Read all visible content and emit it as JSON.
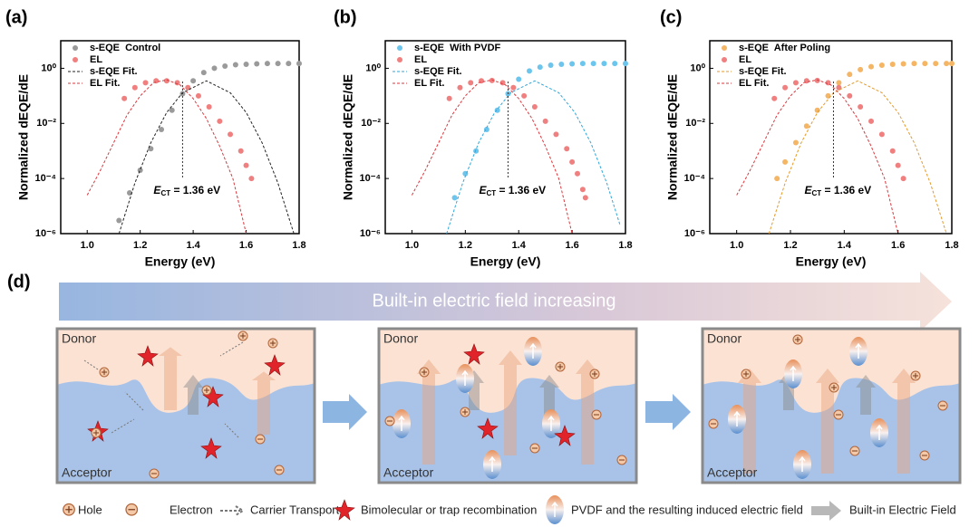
{
  "chart_data": [
    {
      "type": "scatter",
      "panel": "(a)",
      "xlabel": "Energy (eV)",
      "ylabel": "Normalized dEQE/dE",
      "xlim": [
        0.9,
        1.8
      ],
      "xticks": [
        {
          "value": 1,
          "label": "1.0"
        },
        1.2,
        1.4,
        1.6,
        1.8
      ],
      "ylim": [
        1e-06,
        10
      ],
      "ylog": true,
      "yticks": [
        {
          "value": 1,
          "label": "10⁰"
        },
        {
          "value": 0.01,
          "label": "10⁻²"
        },
        {
          "value": 0.0001,
          "label": "10⁻⁴"
        },
        {
          "value": 1e-06,
          "label": "10⁻⁶"
        }
      ],
      "legend": "upper left",
      "series": [
        {
          "name": "s-EQE  Control",
          "color": "#9a9a9a",
          "style": "markers",
          "x": [
            1.12,
            1.16,
            1.2,
            1.24,
            1.28,
            1.32,
            1.36,
            1.4,
            1.44,
            1.48,
            1.52,
            1.56,
            1.6,
            1.64,
            1.68,
            1.72,
            1.76,
            1.8
          ],
          "values": [
            3e-06,
            3e-05,
            0.0002,
            0.0012,
            0.006,
            0.03,
            0.12,
            0.35,
            0.7,
            1.0,
            1.2,
            1.35,
            1.4,
            1.45,
            1.5,
            1.5,
            1.5,
            1.5
          ]
        },
        {
          "name": "EL",
          "color": "#f07f7f",
          "style": "markers",
          "x": [
            1.14,
            1.18,
            1.22,
            1.26,
            1.3,
            1.34,
            1.38,
            1.42,
            1.46,
            1.5,
            1.54,
            1.58,
            1.6,
            1.62
          ],
          "values": [
            0.08,
            0.2,
            0.3,
            0.35,
            0.35,
            0.3,
            0.2,
            0.1,
            0.04,
            0.012,
            0.004,
            0.001,
            0.0003,
            0.0001
          ]
        },
        {
          "name": "s-EQE Fit.",
          "color": "#222222",
          "style": "dashed",
          "x": [
            1.12,
            1.18,
            1.24,
            1.3,
            1.36,
            1.45,
            1.54,
            1.6,
            1.66,
            1.72,
            1.78
          ],
          "values": [
            1e-06,
            6.8e-05,
            0.002,
            0.025,
            0.13,
            0.35,
            0.13,
            0.025,
            0.002,
            6.8e-05,
            1e-06
          ]
        },
        {
          "name": "EL Fit.",
          "color": "#d9393f",
          "style": "dashed",
          "x": [
            1.0,
            1.05,
            1.1,
            1.15,
            1.2,
            1.25,
            1.3,
            1.35,
            1.4,
            1.45,
            1.5,
            1.55,
            1.6
          ],
          "values": [
            2.5e-05,
            0.0002,
            0.002,
            0.02,
            0.1,
            0.3,
            0.38,
            0.25,
            0.08,
            0.015,
            0.0015,
            0.0001,
            1e-06
          ]
        }
      ],
      "annotation": {
        "symbol": "E",
        "sub": "CT",
        "text": " = 1.36 eV",
        "x": 1.36
      }
    },
    {
      "type": "scatter",
      "panel": "(b)",
      "xlabel": "Energy (eV)",
      "ylabel": "Normalized dEQE/dE",
      "xlim": [
        0.9,
        1.8
      ],
      "xticks": [
        {
          "value": 1,
          "label": "1.0"
        },
        1.2,
        1.4,
        1.6,
        1.8
      ],
      "ylim": [
        1e-06,
        10
      ],
      "ylog": true,
      "yticks": [
        {
          "value": 1,
          "label": "10⁰"
        },
        {
          "value": 0.01,
          "label": "10⁻²"
        },
        {
          "value": 0.0001,
          "label": "10⁻⁴"
        },
        {
          "value": 1e-06,
          "label": "10⁻⁶"
        }
      ],
      "legend": "upper left",
      "series": [
        {
          "name": "s-EQE  With PVDF",
          "color": "#6cc5ec",
          "style": "markers",
          "x": [
            1.16,
            1.2,
            1.24,
            1.28,
            1.32,
            1.36,
            1.4,
            1.44,
            1.48,
            1.52,
            1.56,
            1.6,
            1.64,
            1.68,
            1.72,
            1.76,
            1.8
          ],
          "values": [
            2e-05,
            0.00015,
            0.001,
            0.006,
            0.03,
            0.12,
            0.4,
            0.8,
            1.1,
            1.3,
            1.4,
            1.45,
            1.5,
            1.5,
            1.5,
            1.5,
            1.5
          ]
        },
        {
          "name": "EL",
          "color": "#f07f7f",
          "style": "markers",
          "x": [
            1.14,
            1.18,
            1.22,
            1.26,
            1.3,
            1.34,
            1.38,
            1.42,
            1.46,
            1.5,
            1.54,
            1.58,
            1.6,
            1.62,
            1.64,
            1.65
          ],
          "values": [
            0.08,
            0.2,
            0.3,
            0.35,
            0.36,
            0.3,
            0.2,
            0.1,
            0.04,
            0.012,
            0.004,
            0.0012,
            0.0004,
            0.00015,
            4e-05,
            2e-05
          ]
        },
        {
          "name": "s-EQE Fit.",
          "color": "#35a6d8",
          "style": "dashed",
          "x": [
            1.13,
            1.19,
            1.25,
            1.31,
            1.37,
            1.46,
            1.55,
            1.61,
            1.67,
            1.73,
            1.78
          ],
          "values": [
            1e-06,
            6.8e-05,
            0.002,
            0.025,
            0.13,
            0.35,
            0.13,
            0.025,
            0.002,
            6.8e-05,
            2e-06
          ]
        },
        {
          "name": "EL Fit.",
          "color": "#d9393f",
          "style": "dashed",
          "x": [
            1.0,
            1.05,
            1.1,
            1.15,
            1.2,
            1.25,
            1.3,
            1.35,
            1.4,
            1.45,
            1.5,
            1.55,
            1.6
          ],
          "values": [
            2.5e-05,
            0.0002,
            0.002,
            0.02,
            0.1,
            0.3,
            0.38,
            0.25,
            0.08,
            0.015,
            0.0015,
            0.0001,
            1e-06
          ]
        }
      ],
      "annotation": {
        "symbol": "E",
        "sub": "CT",
        "text": " = 1.36 eV",
        "x": 1.36
      }
    },
    {
      "type": "scatter",
      "panel": "(c)",
      "xlabel": "Energy (eV)",
      "ylabel": "Normalized dEQE/dE",
      "xlim": [
        0.9,
        1.8
      ],
      "xticks": [
        {
          "value": 1,
          "label": "1.0"
        },
        1.2,
        1.4,
        1.6,
        1.8
      ],
      "ylim": [
        1e-06,
        10
      ],
      "ylog": true,
      "yticks": [
        {
          "value": 1,
          "label": "10⁰"
        },
        {
          "value": 0.01,
          "label": "10⁻²"
        },
        {
          "value": 0.0001,
          "label": "10⁻⁴"
        },
        {
          "value": 1e-06,
          "label": "10⁻⁶"
        }
      ],
      "legend": "upper left",
      "series": [
        {
          "name": "s-EQE  After Poling",
          "color": "#f4b565",
          "style": "markers",
          "x": [
            1.15,
            1.18,
            1.22,
            1.26,
            1.3,
            1.34,
            1.38,
            1.42,
            1.46,
            1.5,
            1.54,
            1.58,
            1.62,
            1.66,
            1.7,
            1.74,
            1.78,
            1.8
          ],
          "values": [
            0.0001,
            0.0004,
            0.002,
            0.008,
            0.03,
            0.1,
            0.3,
            0.6,
            0.9,
            1.15,
            1.3,
            1.4,
            1.45,
            1.5,
            1.5,
            1.5,
            1.5,
            1.5
          ]
        },
        {
          "name": "EL",
          "color": "#f07f7f",
          "style": "markers",
          "x": [
            1.14,
            1.18,
            1.22,
            1.26,
            1.3,
            1.34,
            1.38,
            1.42,
            1.46,
            1.5,
            1.54,
            1.58,
            1.6,
            1.62
          ],
          "values": [
            0.08,
            0.2,
            0.3,
            0.35,
            0.36,
            0.3,
            0.2,
            0.1,
            0.04,
            0.012,
            0.004,
            0.001,
            0.0003,
            0.0001
          ]
        },
        {
          "name": "s-EQE Fit.",
          "color": "#e39a2e",
          "style": "dashed",
          "x": [
            1.12,
            1.18,
            1.24,
            1.3,
            1.36,
            1.45,
            1.54,
            1.6,
            1.66,
            1.72,
            1.78
          ],
          "values": [
            1e-06,
            6.8e-05,
            0.002,
            0.025,
            0.13,
            0.35,
            0.13,
            0.025,
            0.002,
            6.8e-05,
            1e-06
          ]
        },
        {
          "name": "EL Fit.",
          "color": "#d9393f",
          "style": "dashed",
          "x": [
            1.0,
            1.05,
            1.1,
            1.15,
            1.2,
            1.25,
            1.3,
            1.35,
            1.4,
            1.45,
            1.5,
            1.55,
            1.6
          ],
          "values": [
            2.5e-05,
            0.0002,
            0.002,
            0.02,
            0.1,
            0.3,
            0.38,
            0.25,
            0.08,
            0.015,
            0.0015,
            0.0001,
            1e-06
          ]
        }
      ],
      "annotation": {
        "symbol": "E",
        "sub": "CT",
        "text": " = 1.36 eV",
        "x": 1.36
      }
    }
  ],
  "diagram": {
    "panel": "(d)",
    "banner": "Built-in electric field increasing",
    "panels": [
      {
        "donor": "Donor",
        "acceptor": "Acceptor"
      },
      {
        "donor": "Donor",
        "acceptor": "Acceptor"
      },
      {
        "donor": "Donor",
        "acceptor": "Acceptor"
      }
    ],
    "legend": [
      "Hole",
      "Electron",
      "Carrier Transport",
      "Bimolecular or trap recombination",
      "PVDF and the resulting induced electric field",
      "Built-in Electric Field"
    ]
  }
}
